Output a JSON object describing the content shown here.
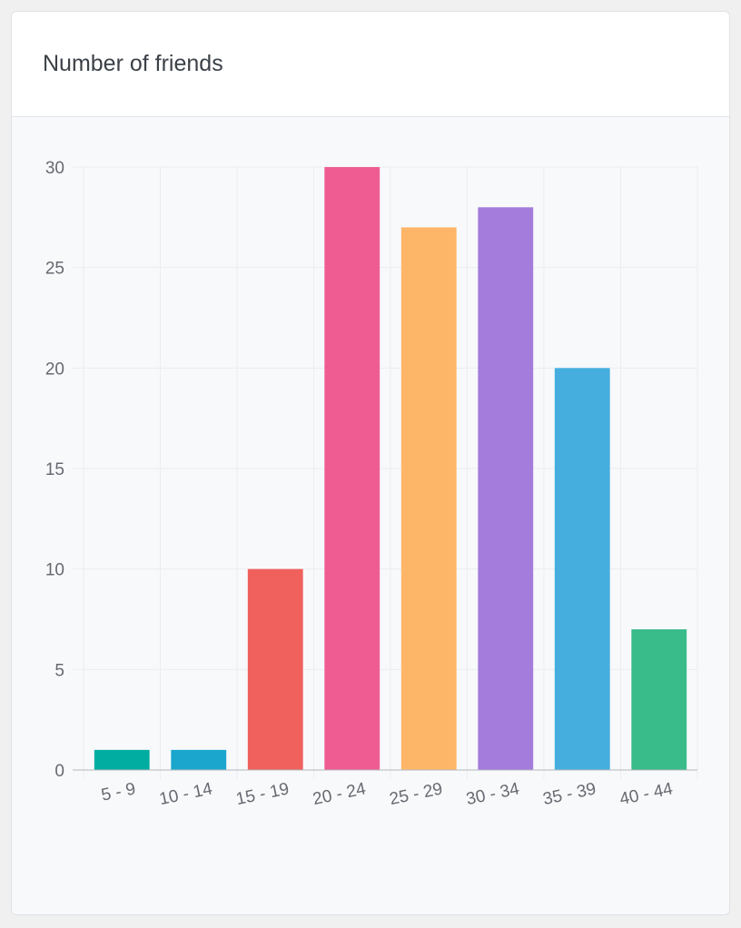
{
  "card": {
    "title": "Number of friends"
  },
  "chart_data": {
    "type": "bar",
    "title": "Number of friends",
    "xlabel": "",
    "ylabel": "",
    "categories": [
      "5 - 9",
      "10 - 14",
      "15 - 19",
      "20 - 24",
      "25 - 29",
      "30 - 34",
      "35 - 39",
      "40 - 44"
    ],
    "values": [
      1,
      1,
      10,
      30,
      27,
      28,
      20,
      7
    ],
    "colors": [
      "#00ada0",
      "#1aa6cd",
      "#f0605d",
      "#ee5c92",
      "#fdb668",
      "#a47cdc",
      "#45aedf",
      "#39bb8a"
    ],
    "ylim": [
      0,
      30
    ],
    "yticks": [
      0,
      5,
      10,
      15,
      20,
      25,
      30
    ],
    "grid": true,
    "legend": "none"
  }
}
